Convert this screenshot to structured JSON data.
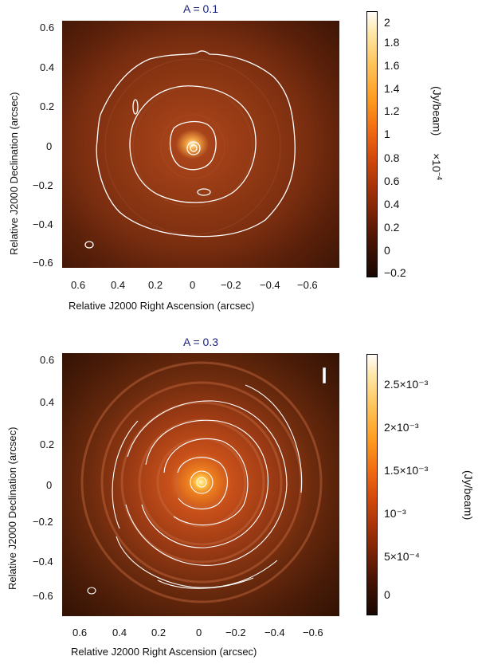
{
  "panels": [
    {
      "title": "A = 0.1",
      "xlabel": "Relative J2000 Right Ascension (arcsec)",
      "ylabel": "Relative J2000 Declination (arcsec)",
      "xticks": [
        "0.6",
        "0.4",
        "0.2",
        "0",
        "−0.2",
        "−0.4",
        "−0.6"
      ],
      "yticks": [
        "0.6",
        "0.4",
        "0.2",
        "0",
        "−0.2",
        "−0.4",
        "−0.6"
      ],
      "colorbar": {
        "ticks": [
          "2",
          "1.8",
          "1.6",
          "1.4",
          "1.2",
          "1",
          "0.8",
          "0.6",
          "0.4",
          "0.2",
          "0",
          "−0.2"
        ],
        "label": "(Jy/beam)",
        "exponent_prefix": "×10",
        "exponent": "−4"
      }
    },
    {
      "title": "A = 0.3",
      "xlabel": "Relative J2000 Right Ascension (arcsec)",
      "ylabel": "Relative J2000 Declination (arcsec)",
      "xticks": [
        "0.6",
        "0.4",
        "0.2",
        "0",
        "−0.2",
        "−0.4",
        "−0.6"
      ],
      "yticks": [
        "0.6",
        "0.4",
        "0.2",
        "0",
        "−0.2",
        "−0.4",
        "−0.6"
      ],
      "colorbar": {
        "ticks": [
          "2.5×10⁻³",
          "2×10⁻³",
          "1.5×10⁻³",
          "10⁻³",
          "5×10⁻⁴",
          "0"
        ],
        "label": "(Jy/beam)"
      },
      "marker": "I"
    }
  ],
  "colors": {
    "map_dark": "#1a0a02",
    "map_mid": "#8a3212",
    "map_bright": "#ffd27a",
    "contour": "#ffffff",
    "title": "#1a237e"
  }
}
